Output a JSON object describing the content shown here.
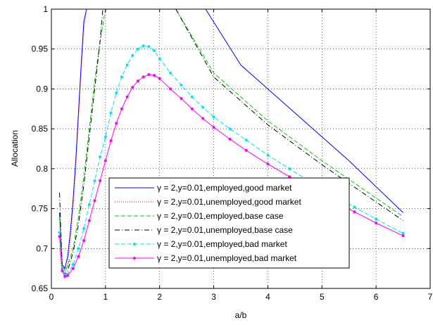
{
  "chart_data": {
    "type": "line",
    "xlabel": "a/b",
    "ylabel": "Allocation",
    "xlim": [
      0,
      7
    ],
    "ylim": [
      0.65,
      1
    ],
    "xticks": [
      "0",
      "1",
      "2",
      "3",
      "4",
      "5",
      "6",
      "7"
    ],
    "yticks": [
      "0.65",
      "0.7",
      "0.75",
      "0.8",
      "0.85",
      "0.9",
      "0.95",
      "1"
    ],
    "grid": true,
    "legend_position": "lower-center",
    "series": [
      {
        "name": "γ = 2,y=0.01,employed,good market",
        "color": "#0000ff",
        "dash": "solid",
        "marker": "none",
        "x": [
          0.15,
          0.2,
          0.25,
          0.3,
          0.35,
          0.4,
          0.45,
          0.5,
          0.55,
          0.6,
          0.65,
          2.85,
          3.5,
          4.5,
          5.5,
          6.5
        ],
        "y": [
          0.745,
          0.68,
          0.675,
          0.69,
          0.72,
          0.76,
          0.81,
          0.87,
          0.93,
          0.985,
          1.0,
          1.0,
          0.93,
          0.87,
          0.81,
          0.745
        ]
      },
      {
        "name": "γ = 2,y=0.01,unemployed,good market",
        "color": "#ff0000",
        "dash": "dot",
        "marker": "none",
        "x": [
          0.15,
          0.2,
          0.25,
          0.3,
          0.35,
          0.4,
          0.45,
          0.5,
          0.55,
          0.6,
          0.65
        ],
        "y": [
          0.7,
          0.67,
          0.668,
          0.68,
          0.71,
          0.75,
          0.8,
          0.86,
          0.92,
          0.975,
          1.0
        ]
      },
      {
        "name": "γ = 2,y=0.01,employed,base case",
        "color": "#00cc00",
        "dash": "dash",
        "marker": "none",
        "x": [
          0.15,
          0.2,
          0.25,
          0.3,
          0.4,
          0.5,
          0.6,
          0.7,
          0.8,
          0.9,
          1.0,
          2.3,
          3.0,
          4.0,
          5.0,
          6.5
        ],
        "y": [
          0.74,
          0.68,
          0.672,
          0.678,
          0.7,
          0.74,
          0.79,
          0.85,
          0.91,
          0.96,
          1.0,
          1.0,
          0.92,
          0.86,
          0.81,
          0.74
        ]
      },
      {
        "name": "γ = 2,y=0.01,unemployed,base case",
        "color": "#000000",
        "dash": "dashdot",
        "marker": "none",
        "x": [
          0.15,
          0.2,
          0.25,
          0.3,
          0.4,
          0.5,
          0.6,
          0.7,
          0.8,
          0.9,
          0.95,
          2.3,
          3.0,
          4.0,
          5.0,
          6.5
        ],
        "y": [
          0.77,
          0.675,
          0.668,
          0.672,
          0.695,
          0.73,
          0.78,
          0.84,
          0.9,
          0.96,
          1.0,
          1.0,
          0.915,
          0.855,
          0.805,
          0.735
        ]
      },
      {
        "name": "γ = 2,y=0.01,employed,bad market",
        "color": "#00e5ee",
        "dash": "dash",
        "marker": "dot",
        "x": [
          0.15,
          0.2,
          0.25,
          0.3,
          0.4,
          0.5,
          0.6,
          0.7,
          0.8,
          0.9,
          1.0,
          1.1,
          1.2,
          1.3,
          1.4,
          1.5,
          1.6,
          1.7,
          1.8,
          1.9,
          2.0,
          2.2,
          2.4,
          2.6,
          2.8,
          3.0,
          3.3,
          3.6,
          4.0,
          4.4,
          4.8,
          5.2,
          5.6,
          6.0,
          6.5
        ],
        "y": [
          0.72,
          0.675,
          0.667,
          0.668,
          0.68,
          0.7,
          0.725,
          0.755,
          0.785,
          0.815,
          0.84,
          0.87,
          0.895,
          0.915,
          0.93,
          0.942,
          0.95,
          0.954,
          0.953,
          0.948,
          0.938,
          0.92,
          0.905,
          0.89,
          0.877,
          0.865,
          0.85,
          0.836,
          0.817,
          0.8,
          0.783,
          0.767,
          0.752,
          0.737,
          0.719
        ]
      },
      {
        "name": "γ = 2,y=0.01,unemployed,bad market",
        "color": "#ff00ff",
        "dash": "solid",
        "marker": "dot",
        "x": [
          0.15,
          0.2,
          0.25,
          0.3,
          0.4,
          0.5,
          0.6,
          0.7,
          0.8,
          0.9,
          1.0,
          1.1,
          1.2,
          1.3,
          1.4,
          1.5,
          1.6,
          1.7,
          1.8,
          1.9,
          2.0,
          2.2,
          2.4,
          2.6,
          2.8,
          3.0,
          3.3,
          3.6,
          4.0,
          4.4,
          4.8,
          5.2,
          5.6,
          6.0,
          6.5
        ],
        "y": [
          0.715,
          0.672,
          0.665,
          0.666,
          0.675,
          0.69,
          0.71,
          0.735,
          0.76,
          0.785,
          0.81,
          0.835,
          0.857,
          0.875,
          0.89,
          0.902,
          0.91,
          0.915,
          0.918,
          0.917,
          0.913,
          0.9,
          0.888,
          0.875,
          0.863,
          0.852,
          0.837,
          0.823,
          0.806,
          0.79,
          0.775,
          0.76,
          0.746,
          0.732,
          0.716
        ]
      }
    ]
  }
}
